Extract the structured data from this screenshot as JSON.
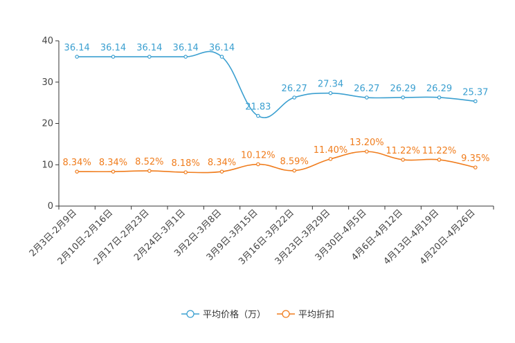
{
  "chart_data": {
    "type": "line",
    "categories": [
      "2月3日-2月9日",
      "2月10日-2月16日",
      "2月17日-2月23日",
      "2月24日-3月1日",
      "3月2日-3月8日",
      "3月9日-3月15日",
      "3月16日-3月22日",
      "3月23日-3月29日",
      "3月30日-4月5日",
      "4月6日-4月12日",
      "4月13日-4月19日",
      "4月20日-4月26日"
    ],
    "ylim": [
      0,
      40
    ],
    "yticks": [
      0,
      10,
      20,
      30,
      40
    ],
    "series": [
      {
        "name": "平均价格（万）",
        "color": "#3a9fd0",
        "values": [
          36.14,
          36.14,
          36.14,
          36.14,
          36.14,
          21.83,
          26.27,
          27.34,
          26.27,
          26.29,
          26.29,
          25.37
        ],
        "labels": [
          "36.14",
          "36.14",
          "36.14",
          "36.14",
          "36.14",
          "21.83",
          "26.27",
          "27.34",
          "26.27",
          "26.29",
          "26.29",
          "25.37"
        ]
      },
      {
        "name": "平均折扣",
        "color": "#f07c1c",
        "values": [
          8.34,
          8.34,
          8.52,
          8.18,
          8.34,
          10.12,
          8.59,
          11.4,
          13.2,
          11.22,
          11.22,
          9.35
        ],
        "labels": [
          "8.34%",
          "8.34%",
          "8.52%",
          "8.18%",
          "8.34%",
          "10.12%",
          "8.59%",
          "11.40%",
          "13.20%",
          "11.22%",
          "11.22%",
          "9.35%"
        ]
      }
    ],
    "legend_position": "bottom-center"
  }
}
